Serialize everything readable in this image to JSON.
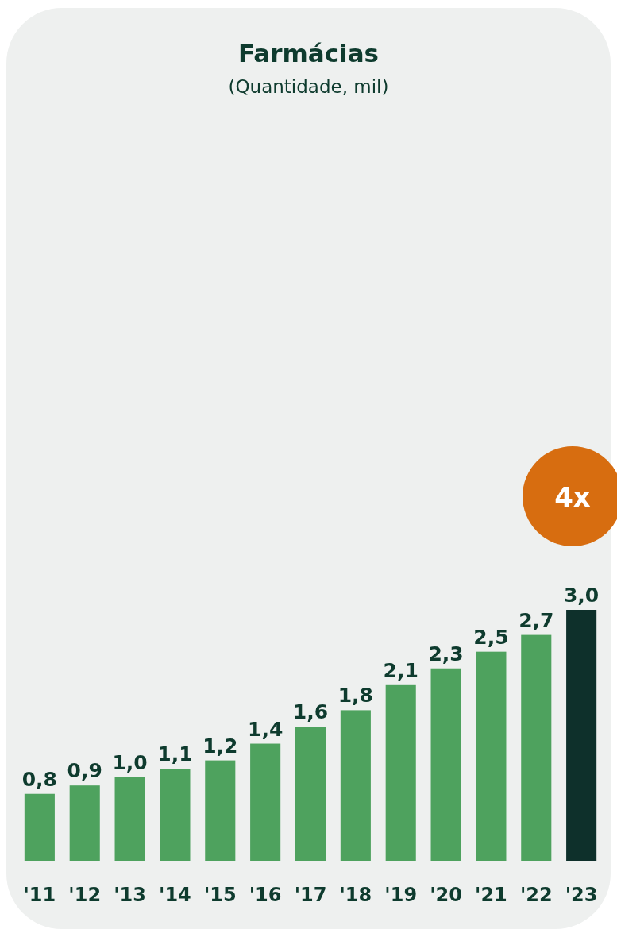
{
  "chart_data": {
    "type": "bar",
    "title": "Farmácias",
    "subtitle": "(Quantidade, mil)",
    "categories": [
      "'11",
      "'12",
      "'13",
      "'14",
      "'15",
      "'16",
      "'17",
      "'18",
      "'19",
      "'20",
      "'21",
      "'22",
      "'23"
    ],
    "values": [
      0.8,
      0.9,
      1.0,
      1.1,
      1.2,
      1.4,
      1.6,
      1.8,
      2.1,
      2.3,
      2.5,
      2.7,
      3.0
    ],
    "colors": [
      "#4ea25e",
      "#4ea25e",
      "#4ea25e",
      "#4ea25e",
      "#4ea25e",
      "#4ea25e",
      "#4ea25e",
      "#4ea25e",
      "#4ea25e",
      "#4ea25e",
      "#4ea25e",
      "#4ea25e",
      "#0e302b"
    ],
    "value_labels": [
      "0,8",
      "0,9",
      "1,0",
      "1,1",
      "1,2",
      "1,4",
      "1,6",
      "1,8",
      "2,1",
      "2,3",
      "2,5",
      "2,7",
      "3,0"
    ],
    "annotations": [
      "4x"
    ]
  }
}
